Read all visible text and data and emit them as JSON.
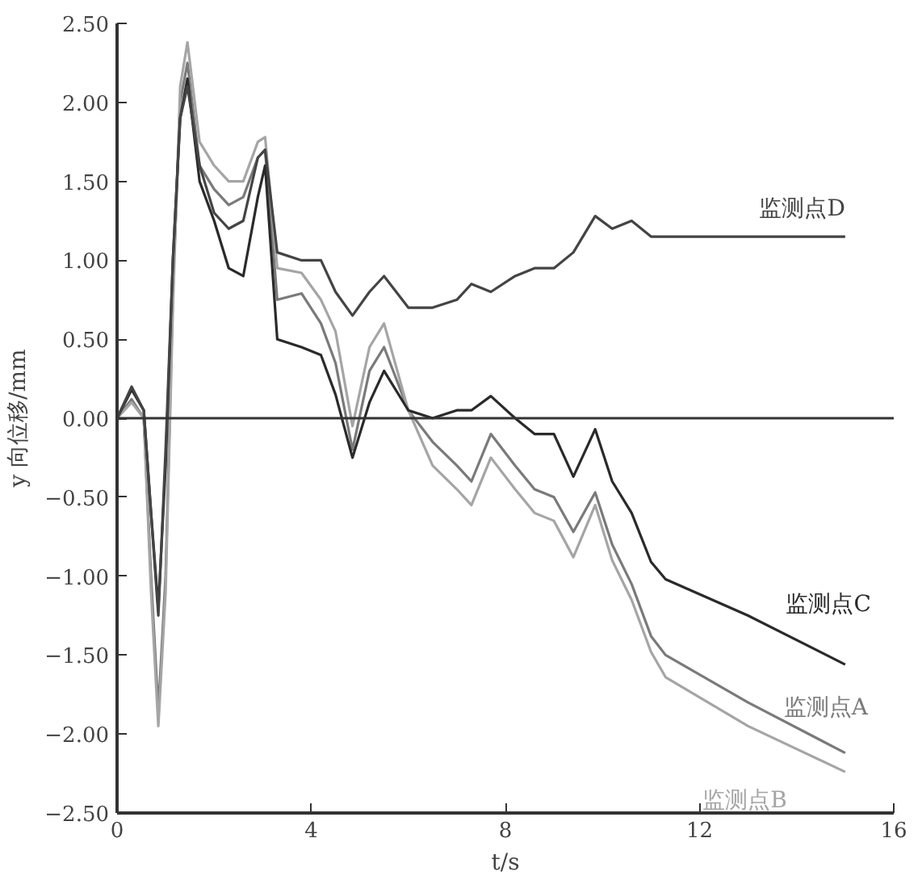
{
  "chart_data": {
    "type": "line",
    "xlabel": "t/s",
    "ylabel": "y 向位移/mm",
    "x": [
      0,
      0.3,
      0.55,
      0.7,
      0.85,
      1.0,
      1.15,
      1.3,
      1.45,
      1.7,
      2.0,
      2.3,
      2.6,
      2.9,
      3.05,
      3.3,
      3.8,
      4.2,
      4.5,
      4.85,
      5.2,
      5.5,
      6.0,
      6.5,
      7.0,
      7.3,
      7.7,
      8.2,
      8.6,
      9.0,
      9.4,
      9.85,
      10.2,
      10.6,
      11.0,
      11.3,
      13,
      15
    ],
    "series": [
      {
        "name": "监测点A",
        "color": "#7a7a7a",
        "values": [
          0,
          0.12,
          0.0,
          -1.0,
          -1.85,
          -1.0,
          0.8,
          2.0,
          2.25,
          1.6,
          1.45,
          1.35,
          1.4,
          1.65,
          1.7,
          0.75,
          0.79,
          0.6,
          0.35,
          -0.2,
          0.3,
          0.45,
          0.05,
          -0.15,
          -0.3,
          -0.4,
          -0.1,
          -0.3,
          -0.45,
          -0.5,
          -0.72,
          -0.47,
          -0.8,
          -1.05,
          -1.38,
          -1.5,
          -1.8,
          -2.12
        ]
      },
      {
        "name": "监测点B",
        "color": "#a5a5a5",
        "values": [
          0,
          0.1,
          0.0,
          -1.1,
          -1.95,
          -1.1,
          0.7,
          2.1,
          2.38,
          1.75,
          1.6,
          1.5,
          1.5,
          1.75,
          1.78,
          0.95,
          0.92,
          0.75,
          0.55,
          -0.05,
          0.45,
          0.6,
          0.05,
          -0.3,
          -0.45,
          -0.55,
          -0.25,
          -0.45,
          -0.6,
          -0.65,
          -0.88,
          -0.55,
          -0.9,
          -1.15,
          -1.48,
          -1.64,
          -1.95,
          -2.24
        ]
      },
      {
        "name": "监测点C",
        "color": "#2a2a2a",
        "values": [
          0,
          0.18,
          0.05,
          -0.6,
          -1.2,
          -0.3,
          1.0,
          1.9,
          2.15,
          1.5,
          1.25,
          0.95,
          0.9,
          1.4,
          1.6,
          0.5,
          0.45,
          0.4,
          0.15,
          -0.25,
          0.1,
          0.3,
          0.05,
          0.0,
          0.05,
          0.05,
          0.14,
          0.0,
          -0.1,
          -0.1,
          -0.37,
          -0.07,
          -0.4,
          -0.6,
          -0.91,
          -1.02,
          -1.25,
          -1.56
        ]
      },
      {
        "name": "监测点D",
        "color": "#444444",
        "values": [
          0,
          0.2,
          0.05,
          -0.6,
          -1.25,
          -0.2,
          1.0,
          1.9,
          2.1,
          1.6,
          1.3,
          1.2,
          1.25,
          1.65,
          1.7,
          1.05,
          1.0,
          1.0,
          0.8,
          0.65,
          0.8,
          0.9,
          0.7,
          0.7,
          0.75,
          0.85,
          0.8,
          0.9,
          0.95,
          0.95,
          1.05,
          1.28,
          1.2,
          1.25,
          1.15,
          1.15,
          1.15,
          1.15
        ]
      }
    ],
    "xlim": [
      0,
      16
    ],
    "xticks": [
      0,
      4,
      8,
      12,
      16
    ],
    "ylim": [
      -2.5,
      2.5
    ],
    "yticks": [
      {
        "value": -2.5,
        "label": "−2.50"
      },
      {
        "value": -2.0,
        "label": "−2.00"
      },
      {
        "value": -1.5,
        "label": "−1.50"
      },
      {
        "value": -1.0,
        "label": "−1.00"
      },
      {
        "value": -0.5,
        "label": "−0.50"
      },
      {
        "value": 0,
        "label": "0.00"
      },
      {
        "value": 0.5,
        "label": "0.50"
      },
      {
        "value": 1.0,
        "label": "1.00"
      },
      {
        "value": 1.5,
        "label": "1.50"
      },
      {
        "value": 2.0,
        "label": "2.00"
      },
      {
        "value": 2.5,
        "label": "2.50"
      }
    ],
    "ref_lines": [
      {
        "axis": "y",
        "value": 0,
        "color": "#333333"
      }
    ],
    "grid": false,
    "line_style": "solid",
    "marker": "none"
  }
}
